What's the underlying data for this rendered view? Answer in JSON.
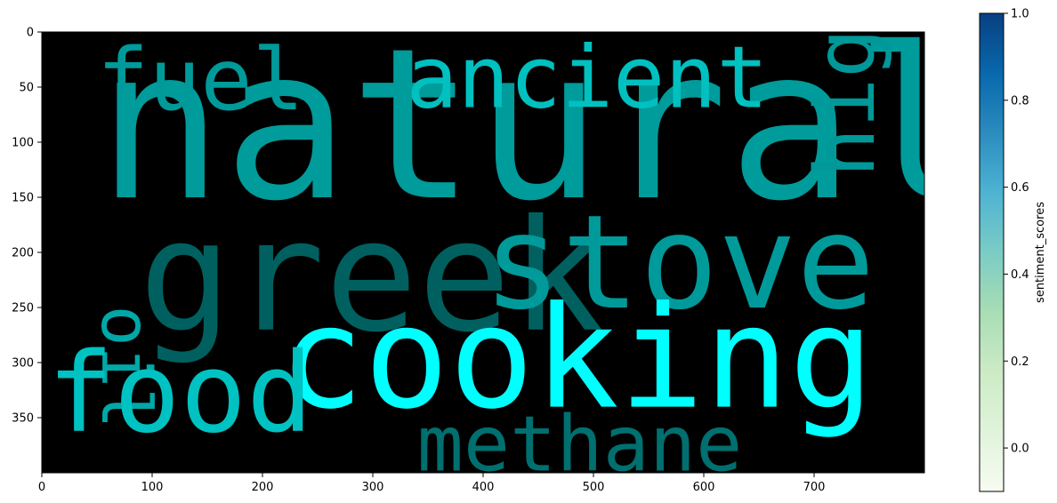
{
  "chart_data": {
    "type": "wordcloud",
    "image_extent": {
      "x": [
        0,
        800
      ],
      "y": [
        0,
        400
      ]
    },
    "x_ticks": [
      0,
      100,
      200,
      300,
      400,
      500,
      600,
      700
    ],
    "y_ticks": [
      0,
      50,
      100,
      150,
      200,
      250,
      300,
      350
    ],
    "background_color": "#000000",
    "words": [
      {
        "text": "natural",
        "x": 50,
        "y": 150,
        "size": 190,
        "rotate": 0,
        "color": "#009b9b"
      },
      {
        "text": "greek",
        "x": 88,
        "y": 270,
        "size": 140,
        "rotate": 0,
        "color": "#006060"
      },
      {
        "text": "stove",
        "x": 400,
        "y": 250,
        "size": 118,
        "rotate": 0,
        "color": "#009a9a"
      },
      {
        "text": "cooking",
        "x": 215,
        "y": 340,
        "size": 128,
        "rotate": 0,
        "color": "#00ffff"
      },
      {
        "text": "fuel",
        "x": 50,
        "y": 70,
        "size": 78,
        "rotate": 0,
        "color": "#009a9a"
      },
      {
        "text": "ancient",
        "x": 330,
        "y": 68,
        "size": 78,
        "rotate": 0,
        "color": "#00c0c0"
      },
      {
        "text": "high",
        "x": 754,
        "y": 132,
        "size": 75,
        "rotate": -90,
        "color": "#009898"
      },
      {
        "text": "oil",
        "x": 55,
        "y": 248,
        "size": 62,
        "rotate": 90,
        "color": "#00a8a8"
      },
      {
        "text": "food",
        "x": 5,
        "y": 362,
        "size": 100,
        "rotate": 0,
        "color": "#00c2c2"
      },
      {
        "text": "methane",
        "x": 340,
        "y": 398,
        "size": 70,
        "rotate": 0,
        "color": "#006f6f"
      }
    ],
    "colorbar": {
      "label": "sentiment_scores",
      "range": [
        -0.1,
        1.0
      ],
      "ticks": [
        0.0,
        0.2,
        0.4,
        0.6,
        0.8,
        1.0
      ],
      "tick_labels": [
        "0.0",
        "0.2",
        "0.4",
        "0.6",
        "0.8",
        "1.0"
      ],
      "colormap": "GnBu",
      "stops": [
        "#f7fcf0",
        "#e0f3db",
        "#ccebc5",
        "#a8ddb5",
        "#7bccc4",
        "#4eb3d3",
        "#2b8cbe",
        "#0868ac",
        "#084081"
      ]
    }
  }
}
